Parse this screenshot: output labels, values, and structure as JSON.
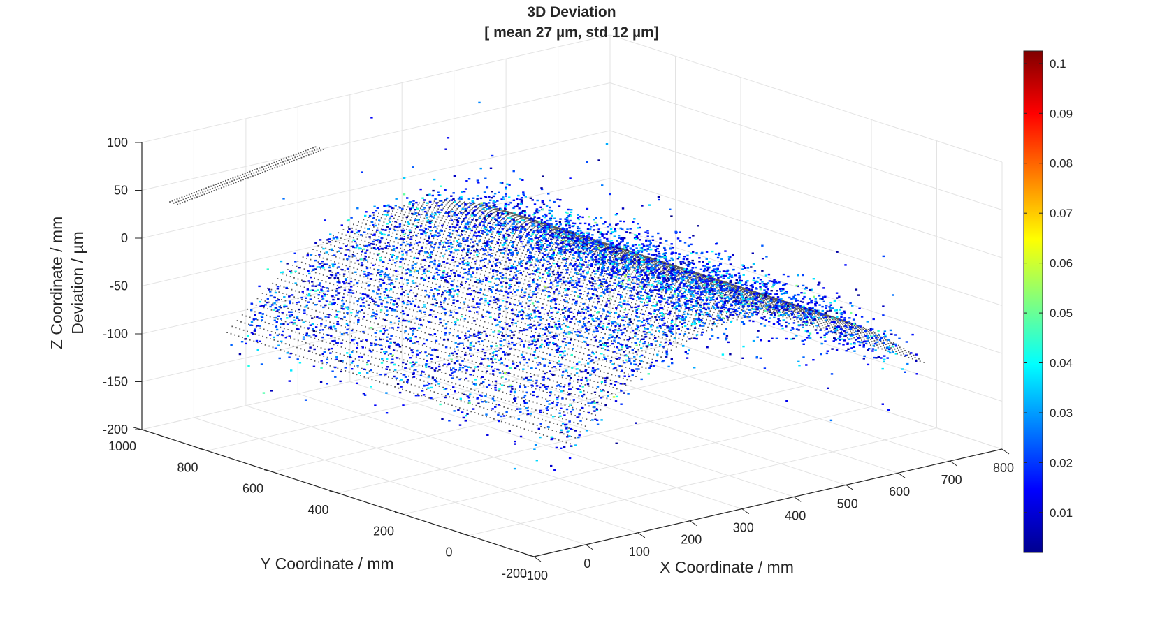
{
  "chart_data": {
    "type": "scatter",
    "title": [
      "3D Deviation",
      "[ mean 27 µm, std 12 µm]"
    ],
    "xlabel": "X Coordinate / mm",
    "ylabel": "Y Coordinate / mm",
    "zlabel": [
      "Z Coordinate / mm",
      "Deviation / µm"
    ],
    "xlim": [
      -100,
      800
    ],
    "ylim": [
      -200,
      1000
    ],
    "zlim": [
      -200,
      100
    ],
    "x_ticks": [
      "-100",
      "0",
      "100",
      "200",
      "300",
      "400",
      "500",
      "600",
      "700",
      "800"
    ],
    "y_ticks": [
      "-200",
      "0",
      "200",
      "400",
      "600",
      "800",
      "1000"
    ],
    "z_ticks": [
      "-200",
      "-150",
      "-100",
      "-50",
      "0",
      "50",
      "100"
    ],
    "grid": true,
    "colorbar": {
      "colormap": "jet",
      "range": [
        0.002,
        0.1025
      ],
      "ticks": [
        "0.01",
        "0.02",
        "0.03",
        "0.04",
        "0.05",
        "0.06",
        "0.07",
        "0.08",
        "0.09",
        "0.1"
      ]
    },
    "series": [
      {
        "marker": "dots",
        "color": "#262626",
        "description": "surface",
        "x_range": [
          0,
          680
        ],
        "y_range": [
          -150,
          900
        ],
        "z_peak": -10,
        "z_edge": -100
      },
      {
        "marker": "dots",
        "colored_by": "deviation",
        "x_range": [
          0,
          680
        ],
        "y_range": [
          -150,
          900
        ],
        "mean": 0.027,
        "std": 0.012
      }
    ]
  }
}
